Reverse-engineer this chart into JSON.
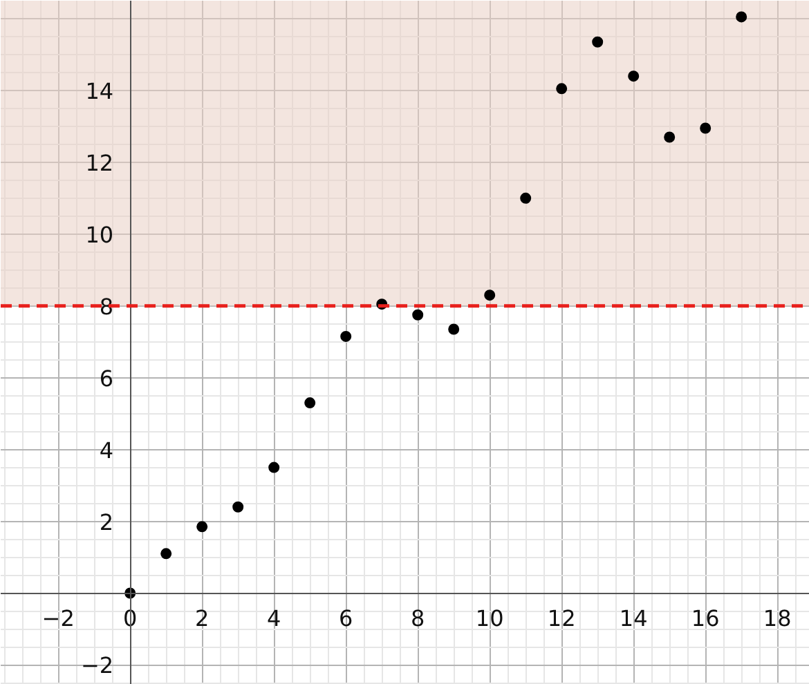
{
  "chart_data": {
    "type": "scatter",
    "x": [
      0,
      1,
      2,
      3,
      4,
      5,
      6,
      7,
      8,
      9,
      10,
      11,
      12,
      13,
      14,
      15,
      16,
      17
    ],
    "series": [
      {
        "color": "#000000",
        "values": [
          0,
          1.1,
          1.85,
          2.4,
          3.5,
          5.3,
          7.15,
          8.05,
          7.75,
          7.35,
          8.3,
          11.0,
          14.05,
          15.35,
          14.4,
          12.7,
          12.95,
          16.05
        ]
      }
    ],
    "xlim": [
      -3.6,
      18.9
    ],
    "ylim": [
      -2.55,
      16.5
    ],
    "xticks": [
      -2,
      0,
      2,
      4,
      6,
      8,
      10,
      12,
      14,
      16,
      18
    ],
    "yticks": [
      -2,
      2,
      4,
      6,
      8,
      10,
      12,
      14
    ],
    "ref_lines": [
      {
        "axis": "y",
        "value": 8,
        "color": "#e8201c",
        "line_style": "dashed"
      }
    ],
    "bands": [
      {
        "axis": "y",
        "from": 8,
        "to": 16.5,
        "color": "#e9cfc4"
      }
    ],
    "grid": true,
    "marker": "circle"
  }
}
